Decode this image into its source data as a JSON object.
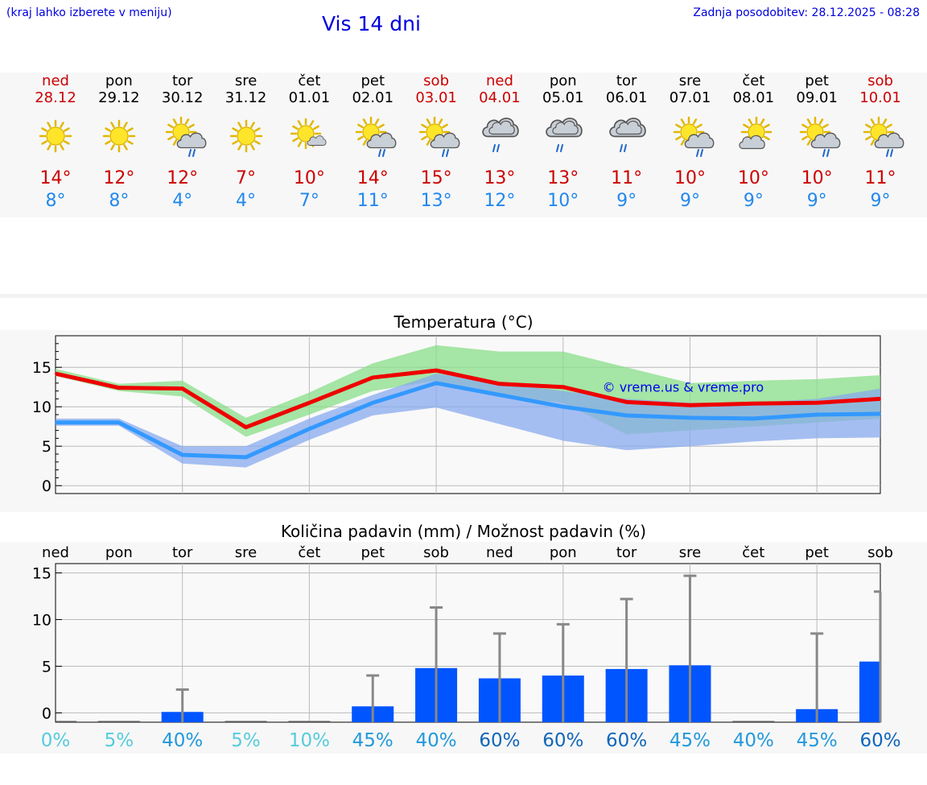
{
  "header": {
    "menu_hint": "(kraj lahko izberete v meniju)",
    "title": "Vis 14 dni",
    "updated": "Zadnja posodobitev: 28.12.2025 - 08:28"
  },
  "colors": {
    "weekend": "#cc0000",
    "weekday": "#000000",
    "tmax": "#cc0000",
    "tmin": "#2288ee",
    "header_text": "#0000dd"
  },
  "days": [
    {
      "name": "ned",
      "date": "28.12",
      "weekend": true,
      "icon": "sun-icon",
      "tmax": "14°",
      "tmin": "8°"
    },
    {
      "name": "pon",
      "date": "29.12",
      "weekend": false,
      "icon": "sun-icon",
      "tmax": "12°",
      "tmin": "8°"
    },
    {
      "name": "tor",
      "date": "30.12",
      "weekend": false,
      "icon": "sun-cloud-rain-icon",
      "tmax": "12°",
      "tmin": "4°"
    },
    {
      "name": "sre",
      "date": "31.12",
      "weekend": false,
      "icon": "sun-icon",
      "tmax": "7°",
      "tmin": "4°"
    },
    {
      "name": "čet",
      "date": "01.01",
      "weekend": false,
      "icon": "sun-small-cloud-icon",
      "tmax": "10°",
      "tmin": "7°"
    },
    {
      "name": "pet",
      "date": "02.01",
      "weekend": false,
      "icon": "sun-cloud-rain-icon",
      "tmax": "14°",
      "tmin": "11°"
    },
    {
      "name": "sob",
      "date": "03.01",
      "weekend": true,
      "icon": "sun-cloud-rain-icon",
      "tmax": "15°",
      "tmin": "13°"
    },
    {
      "name": "ned",
      "date": "04.01",
      "weekend": true,
      "icon": "cloud-rain-icon",
      "tmax": "13°",
      "tmin": "12°"
    },
    {
      "name": "pon",
      "date": "05.01",
      "weekend": false,
      "icon": "cloud-rain-icon",
      "tmax": "13°",
      "tmin": "10°"
    },
    {
      "name": "tor",
      "date": "06.01",
      "weekend": false,
      "icon": "cloud-rain-icon",
      "tmax": "11°",
      "tmin": "9°"
    },
    {
      "name": "sre",
      "date": "07.01",
      "weekend": false,
      "icon": "sun-cloud-rain-icon",
      "tmax": "10°",
      "tmin": "9°"
    },
    {
      "name": "čet",
      "date": "08.01",
      "weekend": false,
      "icon": "sun-cloud-icon",
      "tmax": "10°",
      "tmin": "9°"
    },
    {
      "name": "pet",
      "date": "09.01",
      "weekend": false,
      "icon": "sun-cloud-rain-icon",
      "tmax": "10°",
      "tmin": "9°"
    },
    {
      "name": "sob",
      "date": "10.01",
      "weekend": true,
      "icon": "sun-cloud-rain-icon",
      "tmax": "11°",
      "tmin": "9°"
    }
  ],
  "chart_data": [
    {
      "type": "line",
      "title": "Temperatura (°C)",
      "watermark": "© vreme.us & vreme.pro",
      "ylim": [
        -1,
        19
      ],
      "yticks": [
        0,
        5,
        10,
        15
      ],
      "grid": true,
      "x": [
        0,
        1,
        2,
        3,
        4,
        5,
        6,
        7,
        8,
        9,
        10,
        11,
        12,
        13
      ],
      "series": [
        {
          "key": "max",
          "color": "#ee0000",
          "values": [
            14.2,
            12.4,
            12.3,
            7.4,
            10.5,
            13.7,
            14.6,
            12.9,
            12.5,
            10.6,
            10.2,
            10.4,
            10.5,
            11.0
          ]
        },
        {
          "key": "min",
          "color": "#3399ff",
          "values": [
            8.0,
            8.0,
            3.9,
            3.6,
            7.2,
            10.5,
            13.0,
            11.5,
            10.0,
            8.9,
            8.6,
            8.5,
            9.0,
            9.1
          ]
        }
      ],
      "bands": [
        {
          "key": "max_range",
          "color": "#88dd88",
          "lower": [
            13.9,
            12.0,
            11.3,
            6.2,
            9.0,
            12.0,
            13.3,
            11.2,
            10.5,
            6.5,
            7.0,
            7.5,
            8.0,
            8.5
          ],
          "upper": [
            14.8,
            12.9,
            13.3,
            8.6,
            11.8,
            15.5,
            17.8,
            17.0,
            17.0,
            15.0,
            13.0,
            13.3,
            13.5,
            14.0
          ]
        },
        {
          "key": "min_range",
          "color": "#88aaee",
          "lower": [
            7.6,
            7.6,
            2.8,
            2.3,
            5.8,
            8.9,
            9.9,
            7.8,
            5.7,
            4.5,
            5.0,
            5.6,
            6.0,
            6.1
          ],
          "upper": [
            8.5,
            8.5,
            5.0,
            5.0,
            8.5,
            11.5,
            14.2,
            13.0,
            12.0,
            11.0,
            10.5,
            10.5,
            11.0,
            12.3
          ]
        }
      ]
    },
    {
      "type": "bar",
      "title": "Količina padavin (mm) / Možnost padavin (%)",
      "ylim": [
        -1,
        16
      ],
      "yticks": [
        0,
        5,
        10,
        15
      ],
      "grid": true,
      "categories": [
        "ned",
        "pon",
        "tor",
        "sre",
        "čet",
        "pet",
        "sob",
        "ned",
        "pon",
        "tor",
        "sre",
        "čet",
        "pet",
        "sob"
      ],
      "values": [
        0,
        0,
        0.1,
        0,
        0,
        0.7,
        4.8,
        3.7,
        4.0,
        4.7,
        5.1,
        0,
        0.4,
        5.5
      ],
      "error_max": [
        0,
        0,
        2.5,
        0,
        0,
        4.0,
        11.3,
        8.5,
        9.5,
        12.2,
        14.7,
        0,
        8.5,
        13.0
      ],
      "bar_color": "#0055ff",
      "error_color": "#888888",
      "probability": [
        "0%",
        "5%",
        "40%",
        "5%",
        "10%",
        "45%",
        "40%",
        "60%",
        "60%",
        "60%",
        "45%",
        "40%",
        "45%",
        "60%"
      ],
      "probability_colors": [
        "#55ccdd",
        "#55ccdd",
        "#2299dd",
        "#55ccdd",
        "#55ccdd",
        "#2299dd",
        "#2299dd",
        "#1166bb",
        "#1166bb",
        "#1166bb",
        "#2299dd",
        "#2299dd",
        "#2299dd",
        "#1166bb"
      ]
    }
  ]
}
